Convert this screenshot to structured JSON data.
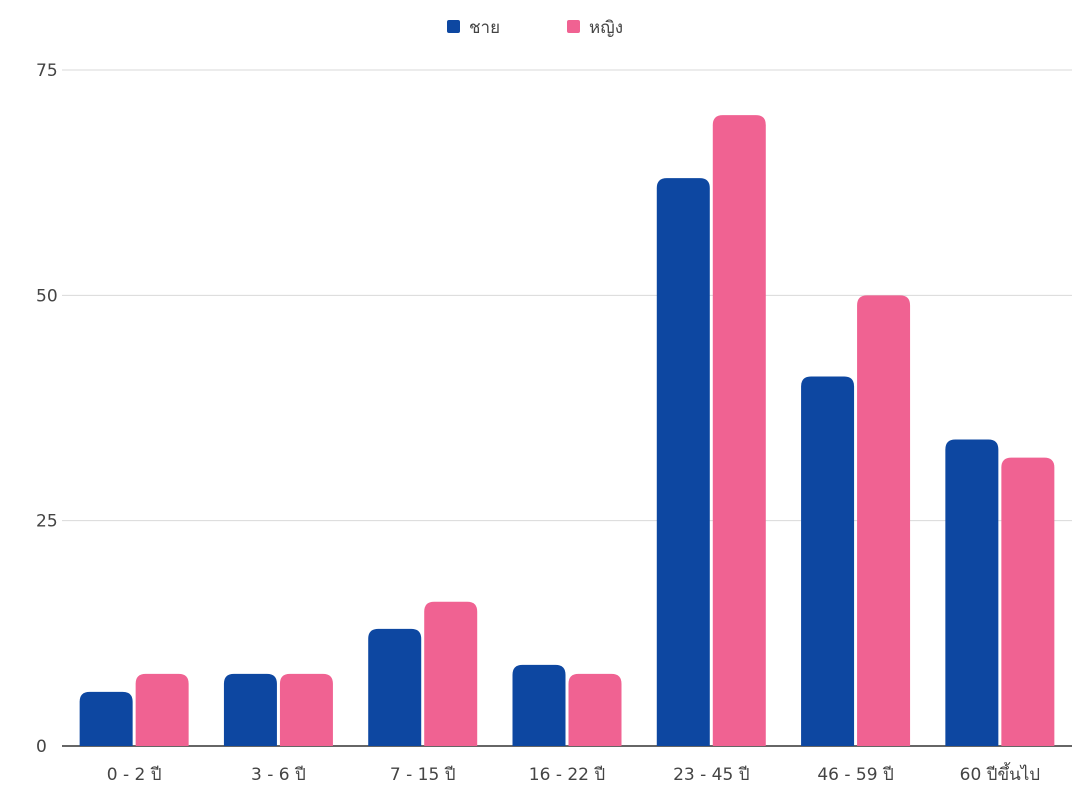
{
  "chart_data": {
    "type": "bar",
    "title": "",
    "xlabel": "",
    "ylabel": "",
    "categories": [
      "0 - 2 ปี",
      "3 - 6 ปี",
      "7 - 15 ปี",
      "16 - 22 ปี",
      "23 - 45 ปี",
      "46 - 59 ปี",
      "60 ปีขึ้นไป"
    ],
    "series": [
      {
        "name": "ชาย",
        "color": "#0d47a1",
        "values": [
          6,
          8,
          13,
          9,
          63,
          41,
          34
        ]
      },
      {
        "name": "หญิง",
        "color": "#f06292",
        "values": [
          8,
          8,
          16,
          8,
          70,
          50,
          32
        ]
      }
    ],
    "ylim": [
      0,
      75
    ],
    "yticks": [
      0,
      25,
      50,
      75
    ],
    "grid": true,
    "legend_position": "top-center"
  }
}
